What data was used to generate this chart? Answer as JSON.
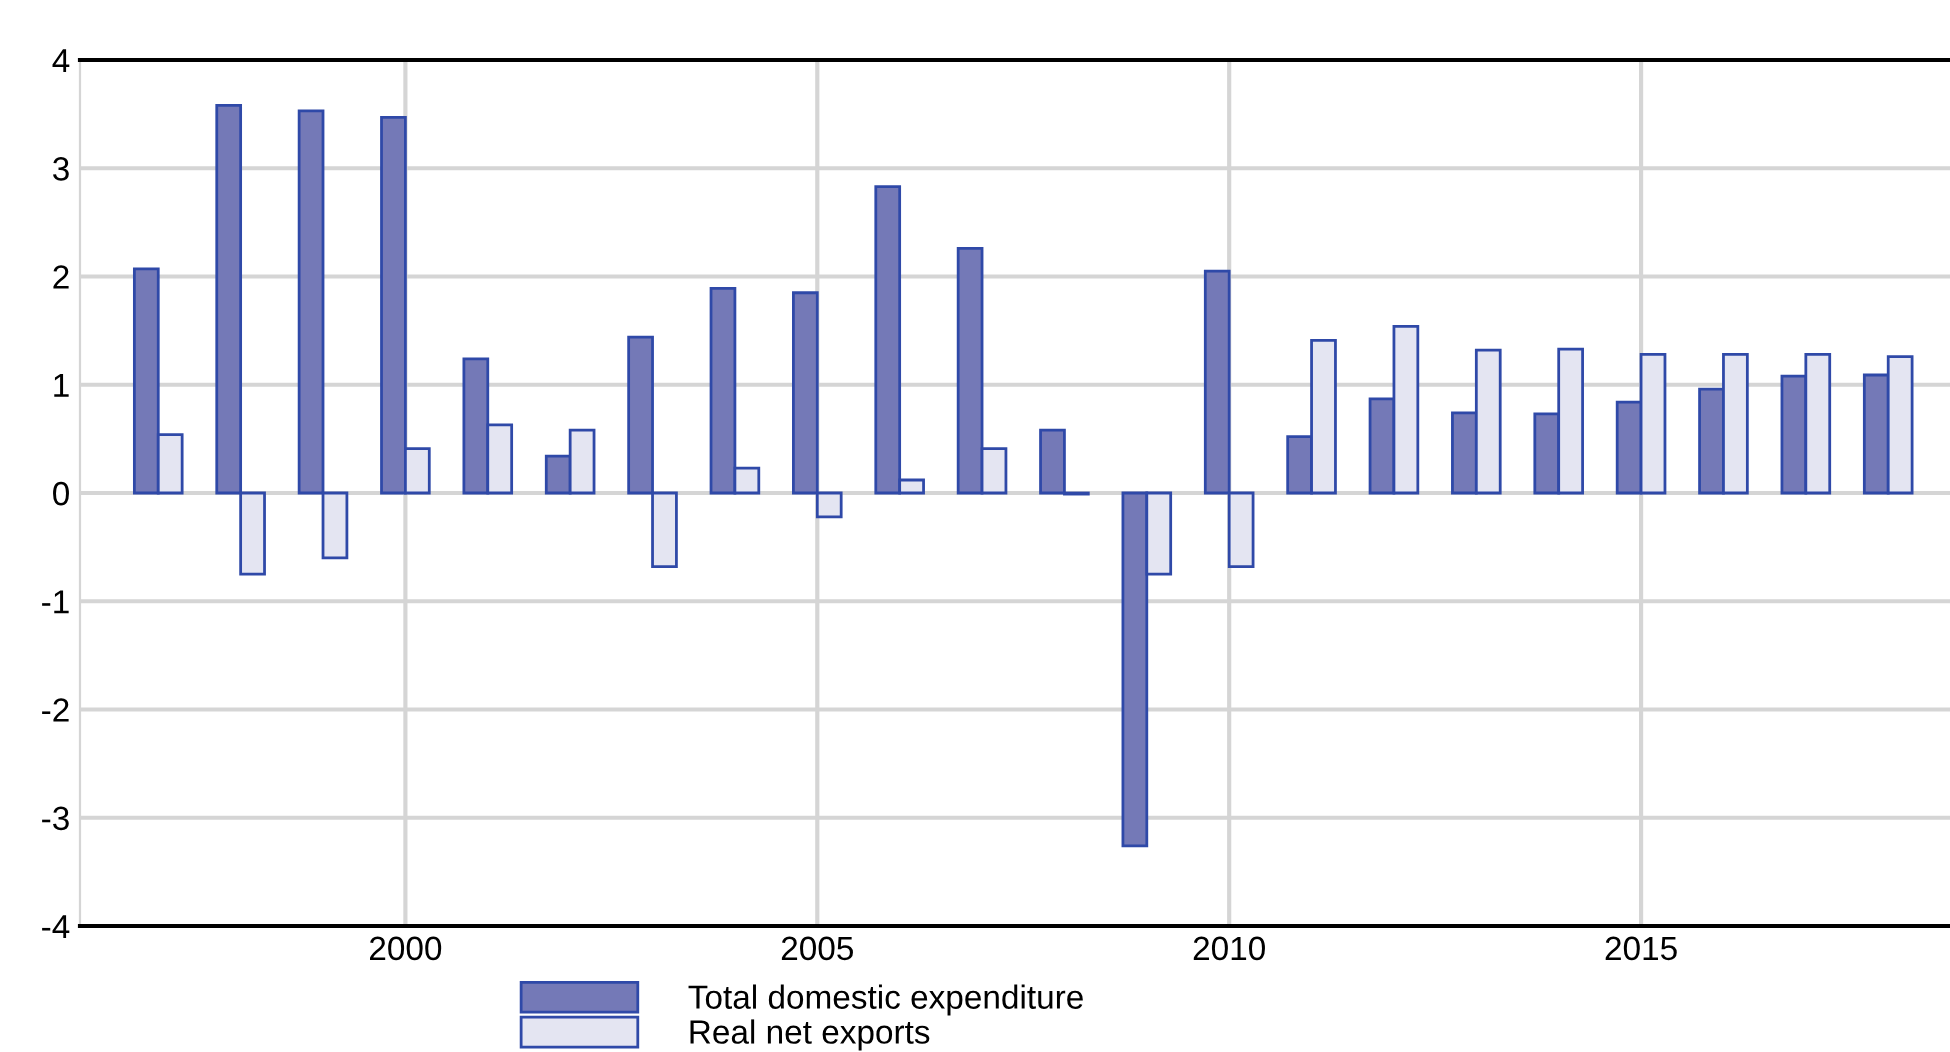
{
  "chart_data": {
    "type": "bar",
    "x": [
      1997,
      1998,
      1999,
      2000,
      2001,
      2002,
      2003,
      2004,
      2005,
      2006,
      2007,
      2008,
      2009,
      2010,
      2011,
      2012,
      2013,
      2014,
      2015,
      2016,
      2017,
      2018
    ],
    "series": [
      {
        "name": "Total domestic expenditure",
        "color": "#7479b7",
        "values": [
          2.07,
          3.58,
          3.53,
          3.47,
          1.24,
          0.34,
          1.44,
          1.89,
          1.85,
          2.83,
          2.26,
          0.58,
          -3.26,
          2.05,
          0.52,
          0.87,
          0.74,
          0.73,
          0.84,
          0.96,
          1.08,
          1.09
        ]
      },
      {
        "name": "Real net exports",
        "color": "#e4e5f2",
        "values": [
          0.54,
          -0.75,
          -0.6,
          0.41,
          0.63,
          0.58,
          -0.68,
          0.23,
          -0.22,
          0.12,
          0.41,
          -0.01,
          -0.75,
          -0.68,
          1.41,
          1.54,
          1.32,
          1.33,
          1.28,
          1.28,
          1.28,
          1.26
        ]
      }
    ],
    "xlim": [
      1996.05,
      2018.75
    ],
    "xticks": [
      2000,
      2005,
      2010,
      2015
    ],
    "ylim": [
      -4,
      4
    ],
    "yticks": [
      {
        "value": -4,
        "label": "-4"
      },
      {
        "value": -3,
        "label": "-3"
      },
      {
        "value": -2,
        "label": "-2"
      },
      {
        "value": -1,
        "label": "-1"
      },
      0,
      1,
      2,
      3,
      4
    ],
    "grid": true,
    "legend": "bottom"
  }
}
